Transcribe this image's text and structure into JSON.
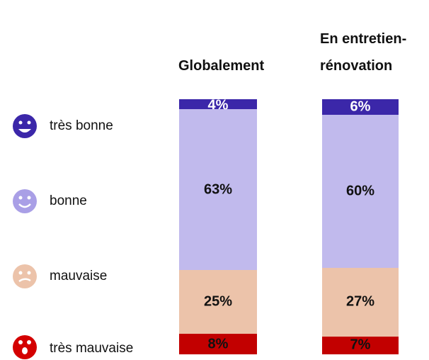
{
  "chart_data": {
    "type": "bar",
    "stacked": true,
    "categories": [
      "Globalement",
      "En entretien-rénovation"
    ],
    "series": [
      {
        "name": "très bonne",
        "color": "#3b27a9",
        "values": [
          4,
          6
        ],
        "value_labels": [
          "4%",
          "6%"
        ]
      },
      {
        "name": "bonne",
        "color": "#c1baed",
        "values": [
          63,
          60
        ],
        "value_labels": [
          "63%",
          "60%"
        ]
      },
      {
        "name": "mauvaise",
        "color": "#ecc3aa",
        "values": [
          25,
          27
        ],
        "value_labels": [
          "25%",
          "27%"
        ]
      },
      {
        "name": "très mauvaise",
        "color": "#c20000",
        "values": [
          8,
          7
        ],
        "value_labels": [
          "8%",
          "7%"
        ]
      }
    ]
  }
}
